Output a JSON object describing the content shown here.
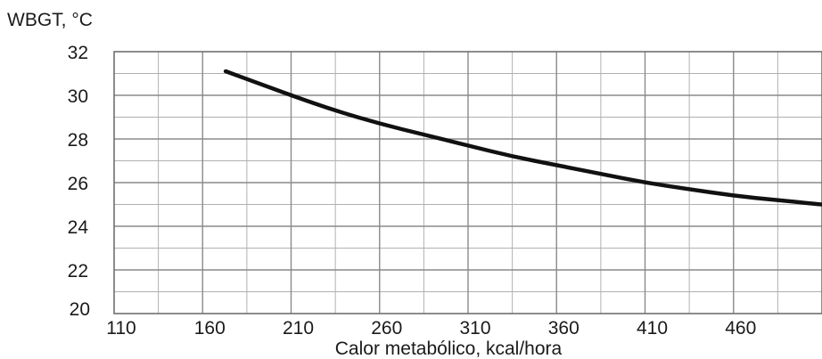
{
  "chart_data": {
    "type": "line",
    "title": "",
    "ylabel": "WBGT, °C",
    "xlabel": "Calor metabólico, kcal/hora",
    "xlim": [
      110,
      510
    ],
    "ylim": [
      20,
      32
    ],
    "x_ticks": [
      110,
      160,
      210,
      260,
      310,
      360,
      410,
      460
    ],
    "y_ticks": [
      20,
      22,
      24,
      26,
      28,
      30,
      32
    ],
    "x_tick_labels": [
      "110",
      "160",
      "210",
      "260",
      "310",
      "360",
      "410",
      "460"
    ],
    "y_tick_labels": [
      "20",
      "22",
      "24",
      "26",
      "28",
      "30",
      "32"
    ],
    "grid": true,
    "series": [
      {
        "color": "#111111",
        "x": [
          173,
          190,
          210,
          235,
          260,
          285,
          310,
          335,
          360,
          385,
          410,
          435,
          460,
          485,
          510
        ],
        "y": [
          31.1,
          30.6,
          30.0,
          29.3,
          28.7,
          28.2,
          27.7,
          27.2,
          26.8,
          26.4,
          26.0,
          25.7,
          25.4,
          25.2,
          25.0
        ]
      }
    ]
  }
}
